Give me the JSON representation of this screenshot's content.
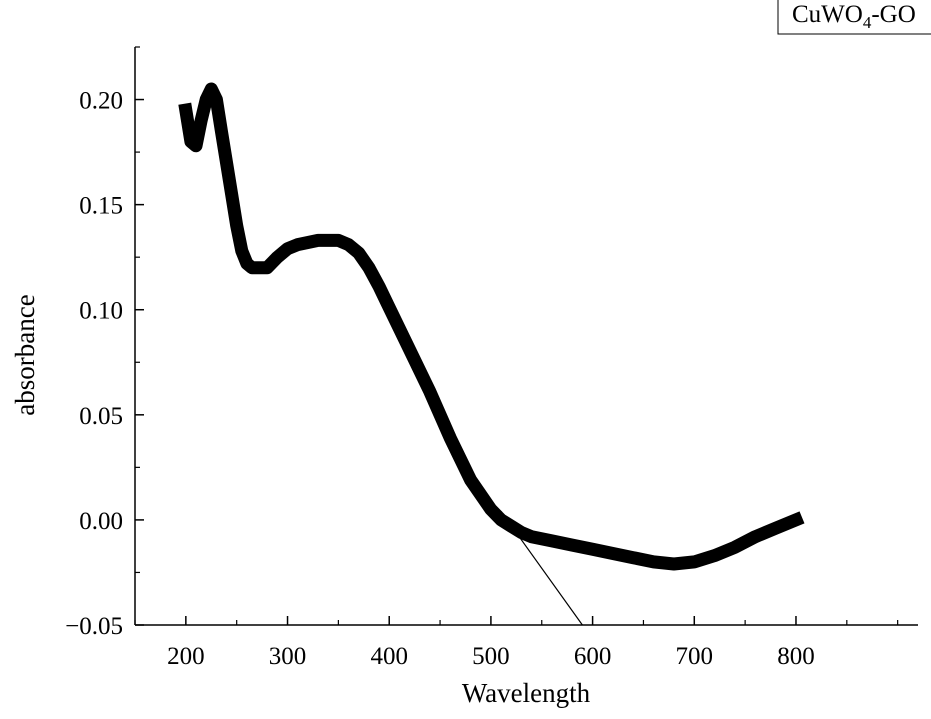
{
  "chart_data": {
    "type": "line",
    "xlabel": "Wavelength",
    "ylabel": "absorbance",
    "xlim": [
      150,
      920
    ],
    "ylim": [
      -0.05,
      0.225
    ],
    "xticks": [
      200,
      300,
      400,
      500,
      600,
      700,
      800
    ],
    "xtick_labels": [
      "200",
      "300",
      "400",
      "500",
      "600",
      "700",
      "800"
    ],
    "yticks": [
      -0.05,
      0.0,
      0.05,
      0.1,
      0.15,
      0.2
    ],
    "ytick_labels": [
      "−0.05",
      "0.00",
      "0.05",
      "0.10",
      "0.15",
      "0.20"
    ],
    "grid": false,
    "legend": {
      "placement": "top-right",
      "entries": [
        "CuWO4-GO"
      ]
    },
    "series": [
      {
        "name": "CuWO4-GO",
        "x": [
          200,
          205,
          210,
          215,
          220,
          225,
          230,
          235,
          240,
          245,
          250,
          255,
          260,
          265,
          270,
          280,
          290,
          300,
          310,
          320,
          330,
          340,
          350,
          360,
          370,
          380,
          390,
          400,
          420,
          440,
          460,
          480,
          500,
          510,
          520,
          530,
          540,
          560,
          580,
          600,
          620,
          640,
          660,
          680,
          700,
          720,
          740,
          760,
          780,
          800
        ],
        "y": [
          0.195,
          0.18,
          0.178,
          0.19,
          0.2,
          0.205,
          0.2,
          0.185,
          0.17,
          0.155,
          0.14,
          0.128,
          0.122,
          0.12,
          0.12,
          0.12,
          0.125,
          0.129,
          0.131,
          0.132,
          0.133,
          0.133,
          0.133,
          0.131,
          0.127,
          0.12,
          0.111,
          0.101,
          0.081,
          0.061,
          0.039,
          0.019,
          0.005,
          0.0,
          -0.003,
          -0.006,
          -0.008,
          -0.01,
          -0.012,
          -0.014,
          -0.016,
          -0.018,
          -0.02,
          -0.021,
          -0.02,
          -0.017,
          -0.013,
          -0.008,
          -0.004,
          0.0
        ]
      },
      {
        "name": "",
        "role": "tangent",
        "x": [
          510,
          590
        ],
        "y": [
          0.004,
          -0.05
        ]
      }
    ]
  }
}
